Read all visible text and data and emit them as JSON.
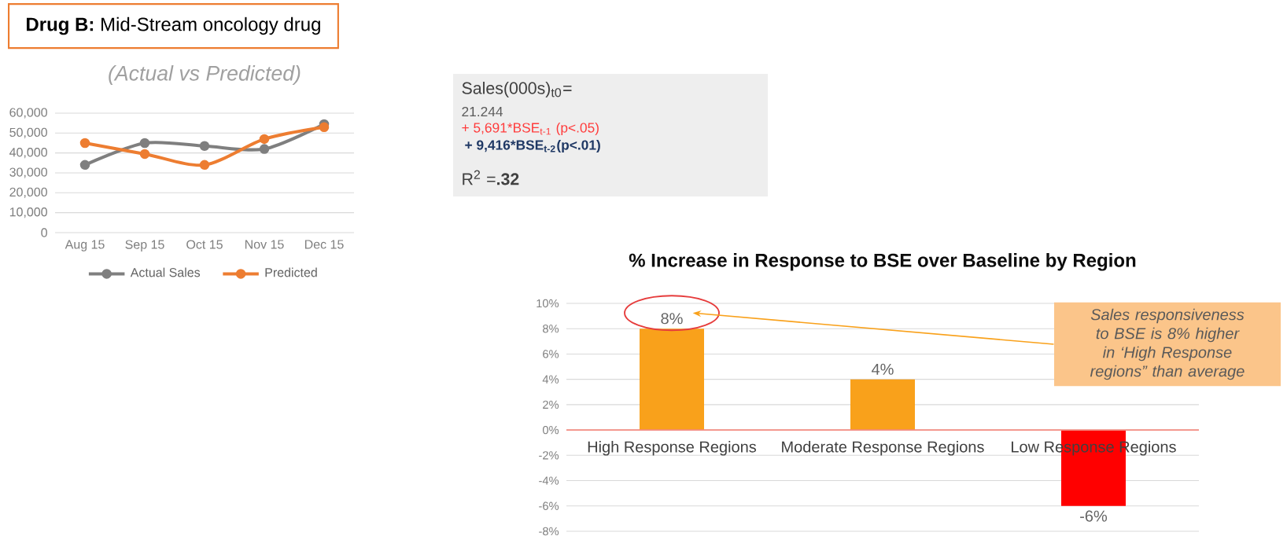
{
  "chart_data": [
    {
      "type": "other",
      "title": "**Drug B:** Mid-Stream oncology drug",
      "annotations": [
        "Sales(000s)$_{t0}$=",
        "21.244",
        "+ 5,691*BSE$_{t-1}$ (p<.05)",
        "+ 9,416*BSE$_{t-2}$(p<.01)",
        "R$^{2}$ =**.32**"
      ]
    },
    {
      "type": "line",
      "title": "(Actual vs Predicted)",
      "categories": [
        "Aug 15",
        "Sep 15",
        "Oct 15",
        "Nov 15",
        "Dec 15"
      ],
      "series": [
        {
          "name": "Actual Sales",
          "color": "#7f7f7f",
          "values": [
            34000,
            45000,
            43500,
            42000,
            54500
          ]
        },
        {
          "name": "Predicted",
          "color": "#ed7d31",
          "values": [
            45000,
            39500,
            34000,
            47000,
            53000
          ]
        }
      ],
      "ylim": [
        0,
        60000
      ],
      "yticks": [
        0,
        {
          "value": 10000,
          "label": "10,000"
        },
        {
          "value": 20000,
          "label": "20,000"
        },
        {
          "value": 30000,
          "label": "30,000"
        },
        {
          "value": 40000,
          "label": "40,000"
        },
        {
          "value": 50000,
          "label": "50,000"
        },
        {
          "value": 60000,
          "label": "60,000"
        }
      ],
      "grid": "y",
      "legend": "bottom",
      "marker": "circle",
      "line_style": "solid"
    },
    {
      "type": "bar",
      "title": "% Increase in Response to BSE over Baseline by Region",
      "categories": [
        "High Response Regions",
        "Moderate Response Regions",
        "Low Response Regions"
      ],
      "values": [
        8,
        4,
        -6
      ],
      "colors": [
        "#f9a11b",
        "#f9a11b",
        "#ff0000"
      ],
      "value_labels": [
        "8%",
        "4%",
        "-6%"
      ],
      "ylim": [
        -8,
        10
      ],
      "yticks": [
        {
          "value": -8,
          "label": "-8%"
        },
        {
          "value": -6,
          "label": "-6%"
        },
        {
          "value": -4,
          "label": "-4%"
        },
        {
          "value": -2,
          "label": "-2%"
        },
        {
          "value": 0,
          "label": "0%"
        },
        {
          "value": 2,
          "label": "2%"
        },
        {
          "value": 4,
          "label": "4%"
        },
        {
          "value": 6,
          "label": "6%"
        },
        {
          "value": 8,
          "label": "8%"
        },
        {
          "value": 10,
          "label": "10%"
        }
      ],
      "grid": "y",
      "annotations": [
        "Sales responsiveness to BSE is 8% higher in ‘High Response regions” than average"
      ]
    }
  ]
}
